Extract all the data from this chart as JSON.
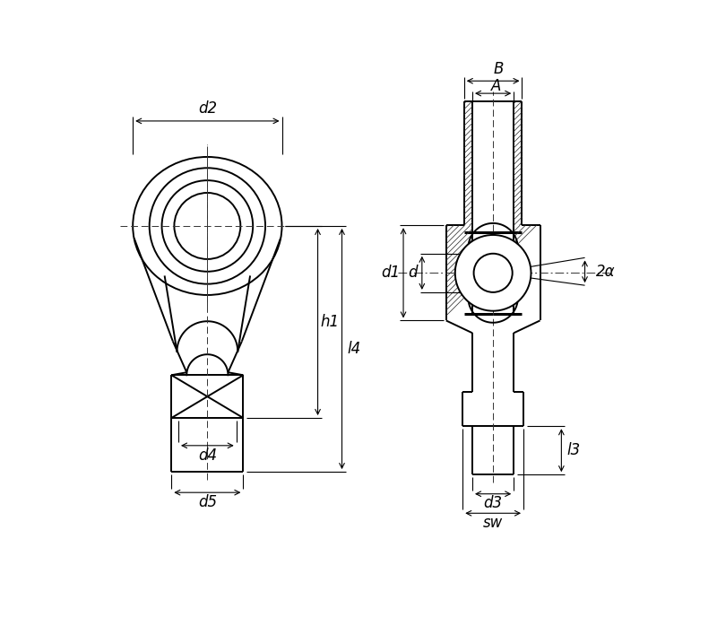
{
  "bg_color": "#ffffff",
  "line_color": "#000000",
  "fig_width": 8.0,
  "fig_height": 6.88,
  "dpi": 100,
  "labels": {
    "d2": "d2",
    "h1": "h1",
    "l4": "l4",
    "d4": "d4",
    "d5": "d5",
    "B": "B",
    "A": "A",
    "d1": "d1",
    "d": "d",
    "alpha": "2α",
    "l3": "l3",
    "d3": "d3",
    "sw": "sw"
  }
}
